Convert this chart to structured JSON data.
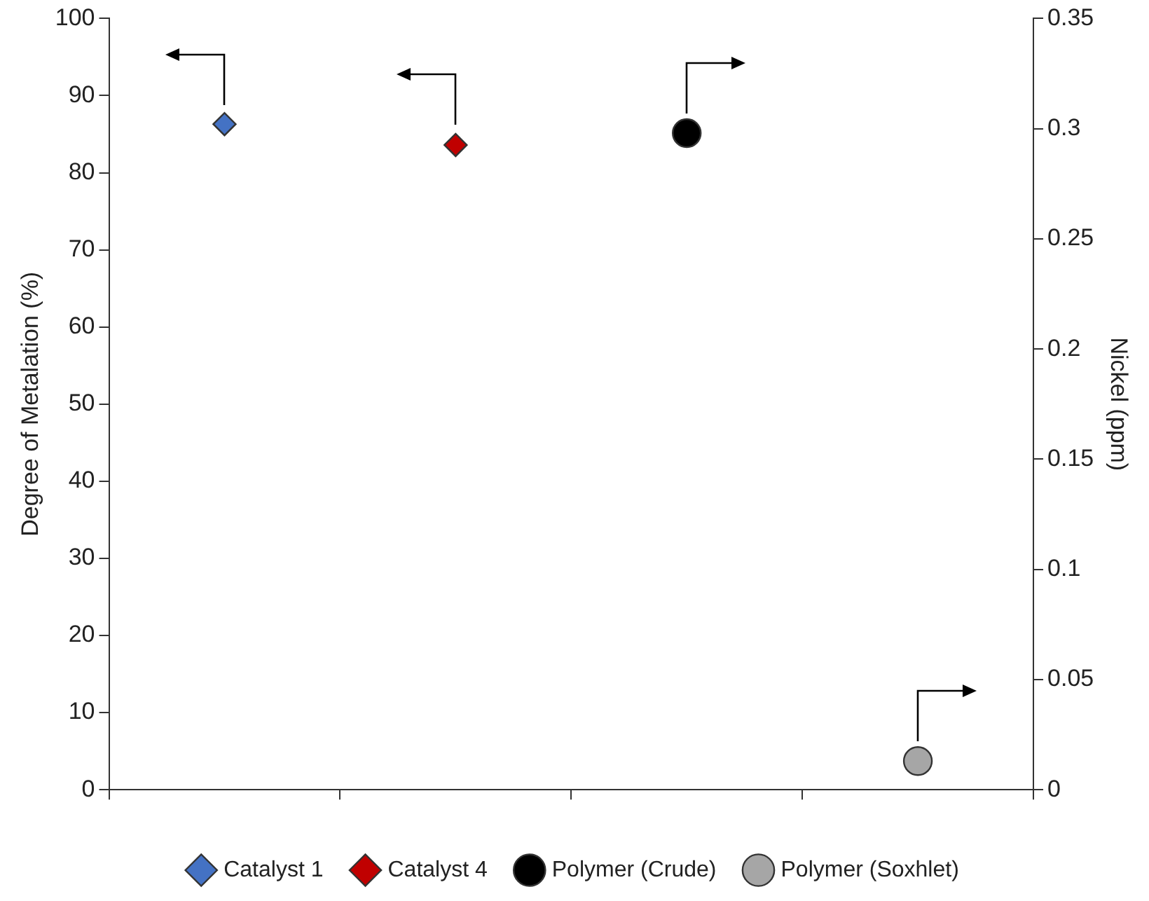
{
  "chart_data": {
    "type": "scatter",
    "ylabel": "Degree of Metalation (%)",
    "y2label": "Nickel (ppm)",
    "categories": [
      null,
      null,
      null,
      null
    ],
    "series": [
      {
        "name": "Catalyst 1",
        "color": "#4472c4",
        "marker": "diamond",
        "values": [
          86.3,
          null,
          null,
          null
        ]
      },
      {
        "name": "Catalyst 4",
        "color": "#c00000",
        "marker": "diamond",
        "values": [
          null,
          83.6,
          null,
          null
        ]
      },
      {
        "name": "Polymer (Crude)",
        "color": "#000000",
        "marker": "circle",
        "axis": "y2",
        "values": [
          null,
          null,
          0.298,
          null
        ]
      },
      {
        "name": "Polymer (Soxhlet)",
        "color": "#a6a6a6",
        "marker": "circle",
        "axis": "y2",
        "values": [
          null,
          null,
          null,
          0.013
        ]
      }
    ],
    "ylim": [
      0,
      100
    ],
    "yticks": [
      0,
      10,
      20,
      30,
      40,
      50,
      60,
      70,
      80,
      90,
      100
    ],
    "y2lim": [
      0,
      0.35
    ],
    "y2ticks": [
      0,
      0.05,
      0.1,
      0.15,
      0.2,
      0.25,
      0.3,
      0.35
    ],
    "grid": false,
    "legend": "bottom"
  }
}
